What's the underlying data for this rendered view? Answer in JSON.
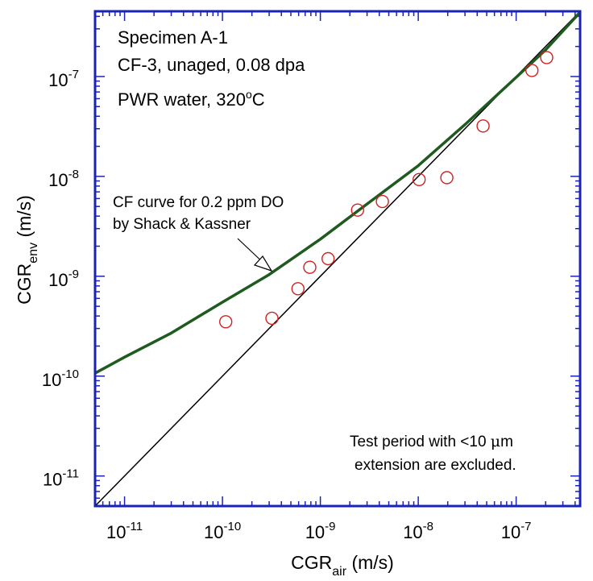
{
  "chart_data": {
    "type": "scatter",
    "xscale": "log",
    "yscale": "log",
    "xlim": [
      5e-12,
      4.5e-07
    ],
    "ylim": [
      5e-12,
      4.5e-07
    ],
    "grid": false,
    "colors": {
      "frame": "#1a23b4",
      "points": "#d42020",
      "cf_curve": "#1f5a1f",
      "ref_line": "#000000"
    },
    "xlabel": {
      "main": "CGR",
      "sub": "air",
      "unit": " (m/s)"
    },
    "ylabel": {
      "main": "CGR",
      "sub": "env",
      "unit": " (m/s)"
    },
    "x_ticks": [
      {
        "value": 1e-11,
        "base": "10",
        "exp": "-11"
      },
      {
        "value": 1e-10,
        "base": "10",
        "exp": "-10"
      },
      {
        "value": 1e-09,
        "base": "10",
        "exp": "-9"
      },
      {
        "value": 1e-08,
        "base": "10",
        "exp": "-8"
      },
      {
        "value": 1e-07,
        "base": "10",
        "exp": "-7"
      }
    ],
    "y_ticks": [
      {
        "value": 1e-11,
        "base": "10",
        "exp": "-11"
      },
      {
        "value": 1e-10,
        "base": "10",
        "exp": "-10"
      },
      {
        "value": 1e-09,
        "base": "10",
        "exp": "-9"
      },
      {
        "value": 1e-08,
        "base": "10",
        "exp": "-8"
      },
      {
        "value": 1e-07,
        "base": "10",
        "exp": "-7"
      }
    ],
    "info_text": {
      "line1": "Specimen A-1",
      "line2": "CF-3, unaged, 0.08 dpa",
      "line3_pre": "PWR water, 320",
      "line3_sup": "o",
      "line3_post": "C"
    },
    "curve_label": {
      "line1": "CF curve for 0.2 ppm DO",
      "line2": "by Shack & Kassner"
    },
    "note": {
      "line1_pre": "Test period with <10 ",
      "line1_mu": "μ",
      "line1_post": "m",
      "line2": "extension are excluded."
    },
    "series": [
      {
        "type": "scatter",
        "marker": "open-circle",
        "points": [
          {
            "x": 1.08e-10,
            "y": 3.5e-10
          },
          {
            "x": 3.2e-10,
            "y": 3.8e-10
          },
          {
            "x": 5.9e-10,
            "y": 7.5e-10
          },
          {
            "x": 7.8e-10,
            "y": 1.23e-09
          },
          {
            "x": 1.2e-09,
            "y": 1.5e-09
          },
          {
            "x": 2.4e-09,
            "y": 4.6e-09
          },
          {
            "x": 4.3e-09,
            "y": 5.6e-09
          },
          {
            "x": 1.02e-08,
            "y": 9.3e-09
          },
          {
            "x": 1.96e-08,
            "y": 9.7e-09
          },
          {
            "x": 4.6e-08,
            "y": 3.2e-08
          },
          {
            "x": 1.45e-07,
            "y": 1.15e-07
          },
          {
            "x": 2.05e-07,
            "y": 1.55e-07
          }
        ]
      },
      {
        "type": "line",
        "points": [
          {
            "x": 5e-12,
            "y": 1.07e-10
          },
          {
            "x": 1e-11,
            "y": 1.55e-10
          },
          {
            "x": 3e-11,
            "y": 2.7e-10
          },
          {
            "x": 1e-10,
            "y": 5.5e-10
          },
          {
            "x": 3e-10,
            "y": 1.04e-09
          },
          {
            "x": 1e-09,
            "y": 2.35e-09
          },
          {
            "x": 3e-09,
            "y": 5.3e-09
          },
          {
            "x": 1e-08,
            "y": 1.28e-08
          },
          {
            "x": 3e-08,
            "y": 3.3e-08
          },
          {
            "x": 1e-07,
            "y": 9.8e-08
          },
          {
            "x": 2e-07,
            "y": 1.85e-07
          },
          {
            "x": 4.5e-07,
            "y": 4.4e-07
          }
        ]
      },
      {
        "type": "line",
        "points": [
          {
            "x": 5e-12,
            "y": 5e-12
          },
          {
            "x": 4.5e-07,
            "y": 4.5e-07
          }
        ]
      }
    ]
  }
}
